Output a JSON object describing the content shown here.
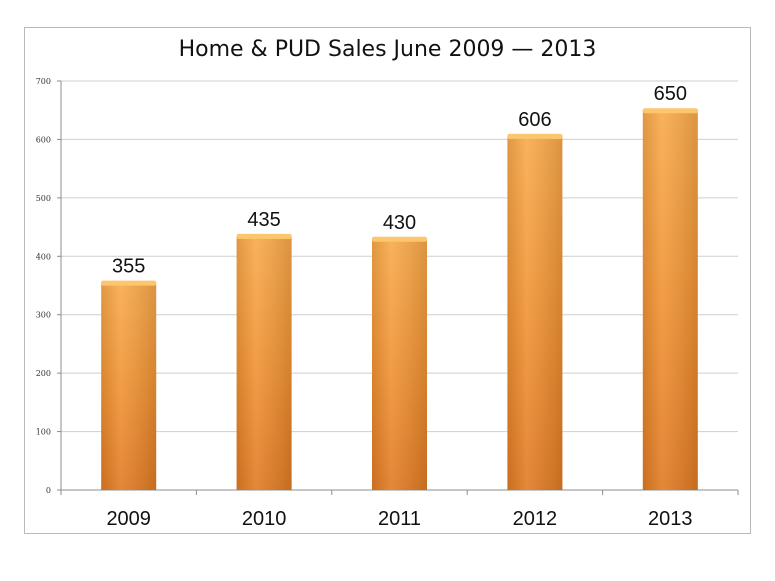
{
  "chart_data": {
    "type": "bar",
    "title": "Home & PUD Sales June 2009 — 2013",
    "xlabel": "",
    "ylabel": "",
    "categories": [
      "2009",
      "2010",
      "2011",
      "2012",
      "2013"
    ],
    "values": [
      355,
      435,
      430,
      606,
      650
    ],
    "data_labels": [
      "355",
      "435",
      "430",
      "606",
      "650"
    ],
    "ylim": [
      0,
      700
    ],
    "yticks": [
      0,
      100,
      200,
      300,
      400,
      500,
      600,
      700
    ],
    "ytick_labels": [
      "0",
      "100",
      "200",
      "300",
      "400",
      "500",
      "600",
      "700"
    ],
    "grid": true,
    "legend": "none",
    "colors": {
      "bar_light": "#f9a94a",
      "bar_mid": "#f29535",
      "bar_dark": "#e07a22",
      "bar_top": "#fcc66e",
      "grid": "#cfcfcf",
      "axis": "#8c8c8c"
    }
  }
}
